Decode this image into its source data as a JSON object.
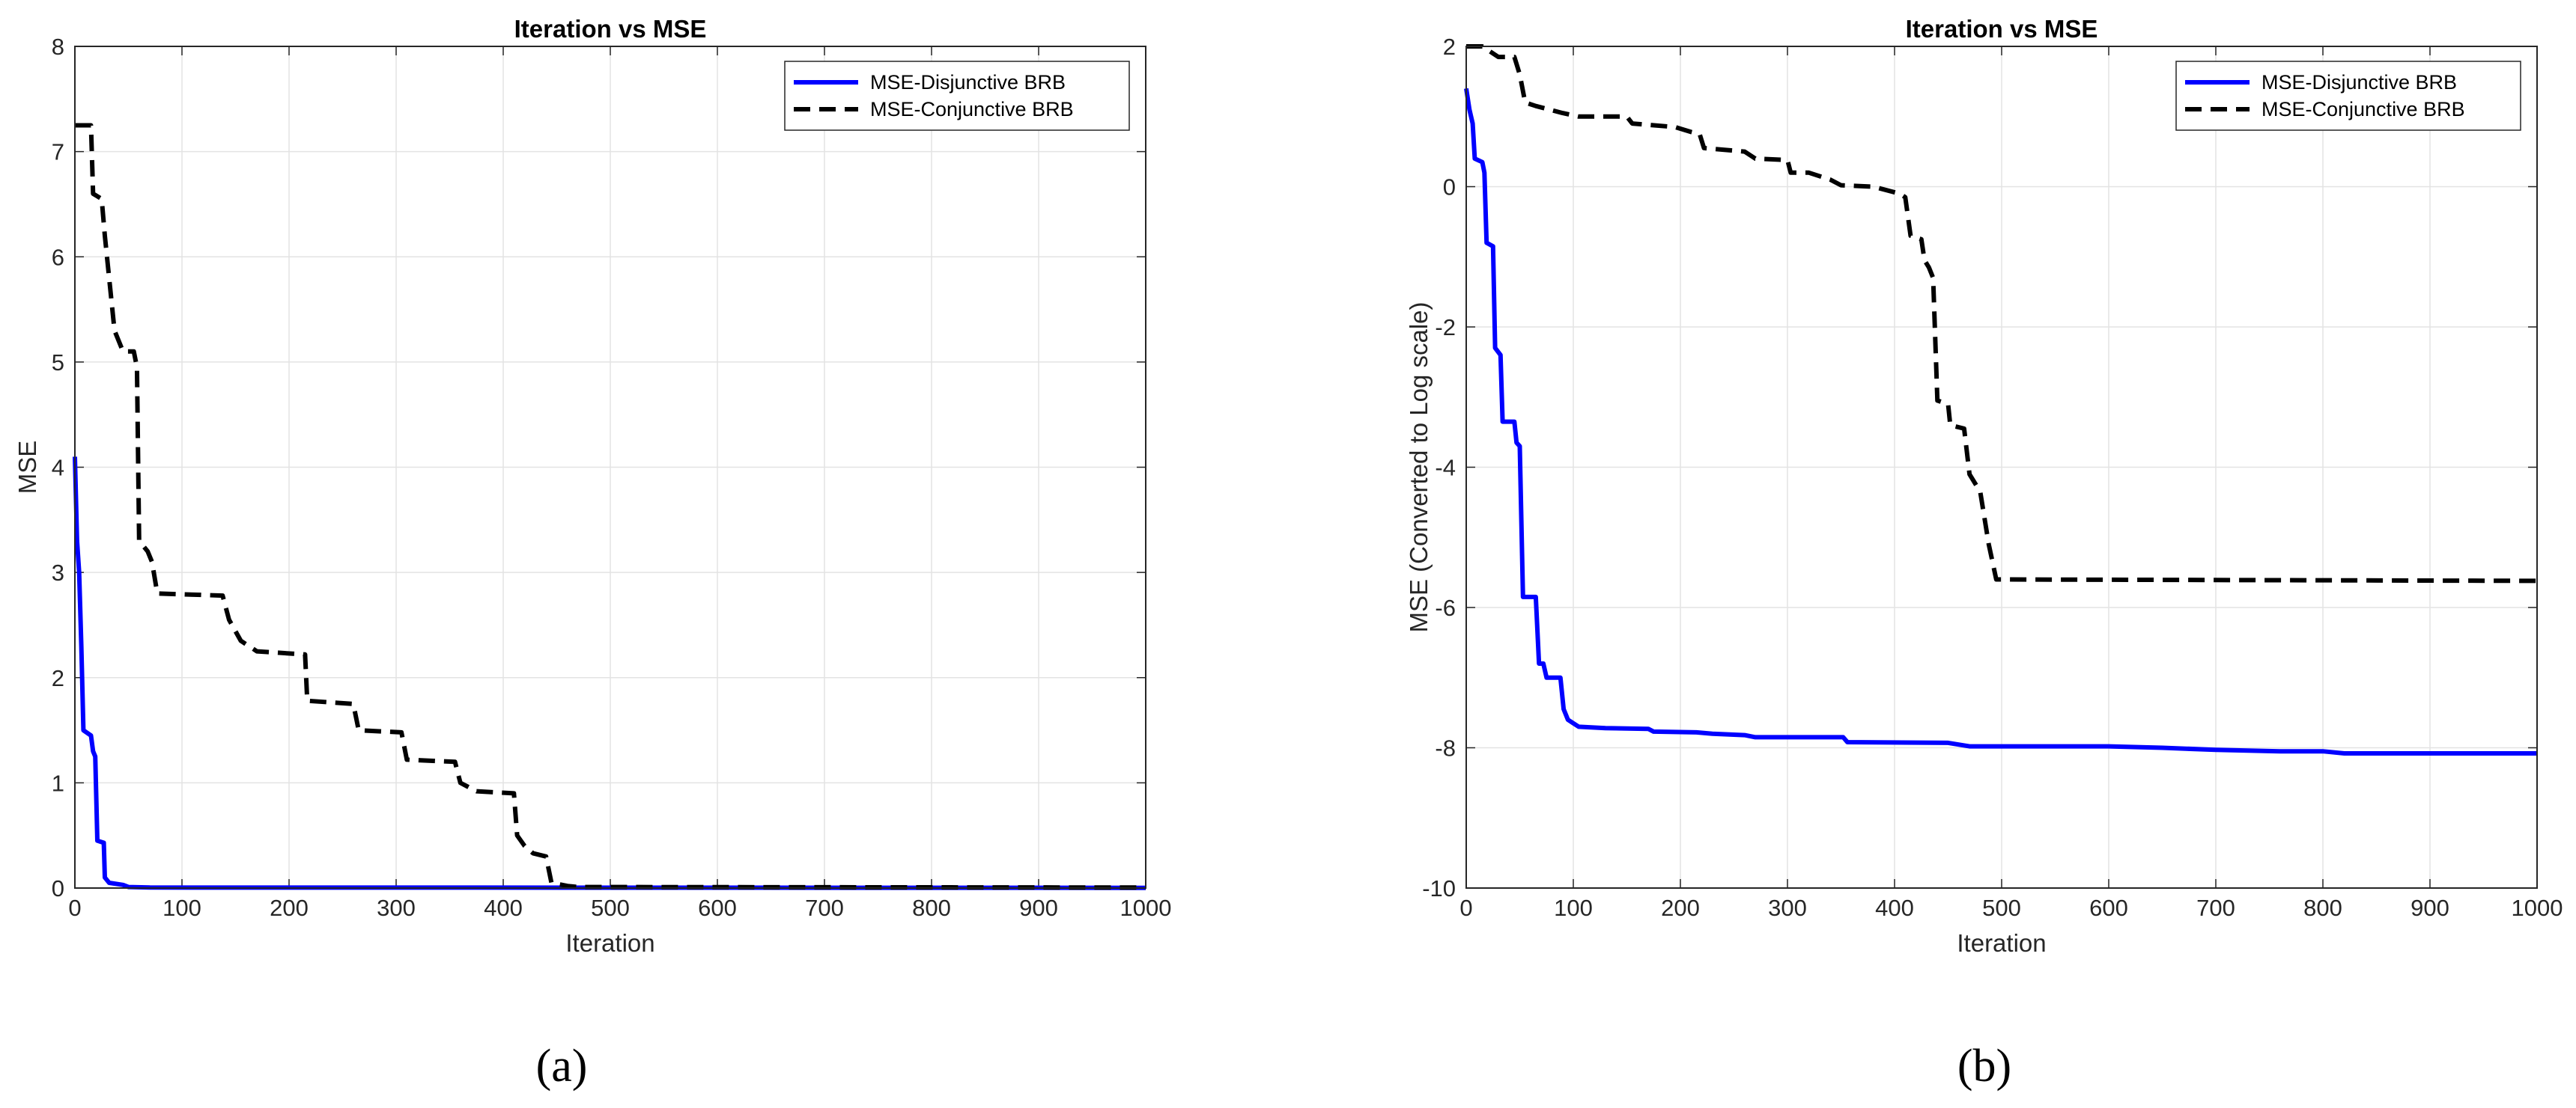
{
  "chart_data": [
    {
      "type": "line",
      "panel_label": "(a)",
      "title": "Iteration vs MSE",
      "xlabel": "Iteration",
      "ylabel": "MSE",
      "xlim": [
        0,
        1000
      ],
      "ylim": [
        0,
        8
      ],
      "xticks": [
        0,
        100,
        200,
        300,
        400,
        500,
        600,
        700,
        800,
        900,
        1000
      ],
      "yticks": [
        0,
        1,
        2,
        3,
        4,
        5,
        6,
        7,
        8
      ],
      "grid": true,
      "legend_position": "top-right",
      "series": [
        {
          "name": "MSE-Disjunctive BRB",
          "color": "#0000ff",
          "style": "solid",
          "points": [
            [
              0,
              4.1
            ],
            [
              2,
              3.3
            ],
            [
              4,
              3.0
            ],
            [
              6,
              2.3
            ],
            [
              8,
              1.5
            ],
            [
              15,
              1.45
            ],
            [
              17,
              1.3
            ],
            [
              19,
              1.25
            ],
            [
              21,
              0.45
            ],
            [
              27,
              0.43
            ],
            [
              28,
              0.1
            ],
            [
              32,
              0.05
            ],
            [
              45,
              0.03
            ],
            [
              50,
              0.01
            ],
            [
              70,
              0.005
            ],
            [
              1000,
              0.002
            ]
          ]
        },
        {
          "name": "MSE-Conjunctive BRB",
          "color": "#000000",
          "style": "dashed",
          "points": [
            [
              0,
              7.25
            ],
            [
              15,
              7.25
            ],
            [
              17,
              6.6
            ],
            [
              25,
              6.55
            ],
            [
              28,
              6.2
            ],
            [
              37,
              5.3
            ],
            [
              45,
              5.1
            ],
            [
              55,
              5.1
            ],
            [
              58,
              4.95
            ],
            [
              60,
              3.3
            ],
            [
              68,
              3.2
            ],
            [
              72,
              3.1
            ],
            [
              77,
              2.8
            ],
            [
              138,
              2.78
            ],
            [
              144,
              2.55
            ],
            [
              155,
              2.35
            ],
            [
              170,
              2.25
            ],
            [
              215,
              2.22
            ],
            [
              217,
              1.78
            ],
            [
              260,
              1.75
            ],
            [
              265,
              1.5
            ],
            [
              305,
              1.48
            ],
            [
              310,
              1.22
            ],
            [
              355,
              1.2
            ],
            [
              360,
              1.0
            ],
            [
              375,
              0.92
            ],
            [
              410,
              0.9
            ],
            [
              413,
              0.5
            ],
            [
              420,
              0.4
            ],
            [
              428,
              0.33
            ],
            [
              440,
              0.3
            ],
            [
              445,
              0.05
            ],
            [
              460,
              0.02
            ],
            [
              470,
              0.01
            ],
            [
              1000,
              0.005
            ]
          ]
        }
      ]
    },
    {
      "type": "line",
      "panel_label": "(b)",
      "title": "Iteration vs MSE",
      "xlabel": "Iteration",
      "ylabel": "MSE (Converted to Log scale)",
      "xlim": [
        0,
        1000
      ],
      "ylim": [
        -10,
        2
      ],
      "xticks": [
        0,
        100,
        200,
        300,
        400,
        500,
        600,
        700,
        800,
        900,
        1000
      ],
      "yticks": [
        -10,
        -8,
        -6,
        -4,
        -2,
        0,
        2
      ],
      "grid": true,
      "legend_position": "top-right",
      "series": [
        {
          "name": "MSE-Disjunctive BRB",
          "color": "#0000ff",
          "style": "solid",
          "points": [
            [
              0,
              1.4
            ],
            [
              3,
              1.1
            ],
            [
              6,
              0.9
            ],
            [
              8,
              0.4
            ],
            [
              15,
              0.35
            ],
            [
              17,
              0.2
            ],
            [
              19,
              -0.8
            ],
            [
              25,
              -0.85
            ],
            [
              27,
              -2.3
            ],
            [
              32,
              -2.4
            ],
            [
              34,
              -3.35
            ],
            [
              45,
              -3.35
            ],
            [
              47,
              -3.65
            ],
            [
              50,
              -3.7
            ],
            [
              53,
              -5.85
            ],
            [
              65,
              -5.85
            ],
            [
              68,
              -6.8
            ],
            [
              72,
              -6.8
            ],
            [
              75,
              -7.0
            ],
            [
              88,
              -7.0
            ],
            [
              91,
              -7.45
            ],
            [
              95,
              -7.6
            ],
            [
              100,
              -7.65
            ],
            [
              105,
              -7.7
            ],
            [
              130,
              -7.72
            ],
            [
              170,
              -7.73
            ],
            [
              175,
              -7.77
            ],
            [
              215,
              -7.78
            ],
            [
              230,
              -7.8
            ],
            [
              260,
              -7.82
            ],
            [
              270,
              -7.85
            ],
            [
              352,
              -7.85
            ],
            [
              356,
              -7.92
            ],
            [
              450,
              -7.93
            ],
            [
              470,
              -7.98
            ],
            [
              600,
              -7.98
            ],
            [
              650,
              -8.0
            ],
            [
              700,
              -8.03
            ],
            [
              760,
              -8.05
            ],
            [
              800,
              -8.05
            ],
            [
              820,
              -8.08
            ],
            [
              1000,
              -8.08
            ]
          ]
        },
        {
          "name": "MSE-Conjunctive BRB",
          "color": "#000000",
          "style": "dashed",
          "points": [
            [
              0,
              2.0
            ],
            [
              15,
              2.0
            ],
            [
              30,
              1.85
            ],
            [
              45,
              1.85
            ],
            [
              50,
              1.6
            ],
            [
              55,
              1.2
            ],
            [
              65,
              1.15
            ],
            [
              90,
              1.05
            ],
            [
              105,
              1.0
            ],
            [
              150,
              1.0
            ],
            [
              155,
              0.9
            ],
            [
              195,
              0.85
            ],
            [
              210,
              0.78
            ],
            [
              218,
              0.75
            ],
            [
              222,
              0.55
            ],
            [
              260,
              0.5
            ],
            [
              270,
              0.4
            ],
            [
              300,
              0.38
            ],
            [
              303,
              0.2
            ],
            [
              320,
              0.2
            ],
            [
              340,
              0.1
            ],
            [
              350,
              0.02
            ],
            [
              380,
              0.0
            ],
            [
              405,
              -0.1
            ],
            [
              410,
              -0.15
            ],
            [
              415,
              -0.7
            ],
            [
              425,
              -0.75
            ],
            [
              428,
              -1.05
            ],
            [
              432,
              -1.15
            ],
            [
              436,
              -1.3
            ],
            [
              440,
              -3.05
            ],
            [
              450,
              -3.1
            ],
            [
              452,
              -3.4
            ],
            [
              465,
              -3.45
            ],
            [
              470,
              -4.1
            ],
            [
              480,
              -4.35
            ],
            [
              488,
              -5.1
            ],
            [
              495,
              -5.6
            ],
            [
              1000,
              -5.62
            ]
          ]
        }
      ]
    }
  ]
}
